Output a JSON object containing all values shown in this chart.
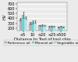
{
  "categories": [
    "≈5",
    "10",
    "≈20",
    "≈25",
    "≈500"
  ],
  "xlabel": "Distance to Tool of tool chip",
  "ylabel": "HV",
  "series": [
    {
      "name": "Reference oil",
      "values": [
        385,
        305,
        255,
        235,
        228
      ],
      "errors": [
        28,
        22,
        12,
        8,
        8
      ],
      "color": "#b8b8c8"
    },
    {
      "name": "Mineral oil",
      "values": [
        470,
        330,
        265,
        240,
        232
      ],
      "errors": [
        60,
        28,
        14,
        8,
        8
      ],
      "color": "#70d8d8"
    },
    {
      "name": "Vegetable oil",
      "values": [
        415,
        330,
        258,
        238,
        230
      ],
      "errors": [
        28,
        25,
        12,
        8,
        8
      ],
      "color": "#a8f0f0"
    }
  ],
  "ylim": [
    150,
    720
  ],
  "yticks": [
    200,
    300,
    400,
    500,
    600,
    700
  ],
  "background_color": "#ebebeb",
  "grid_color": "#ffffff",
  "bar_width": 0.25,
  "axis_fontsize": 3.8,
  "tick_fontsize": 3.5,
  "legend_fontsize": 3.2
}
